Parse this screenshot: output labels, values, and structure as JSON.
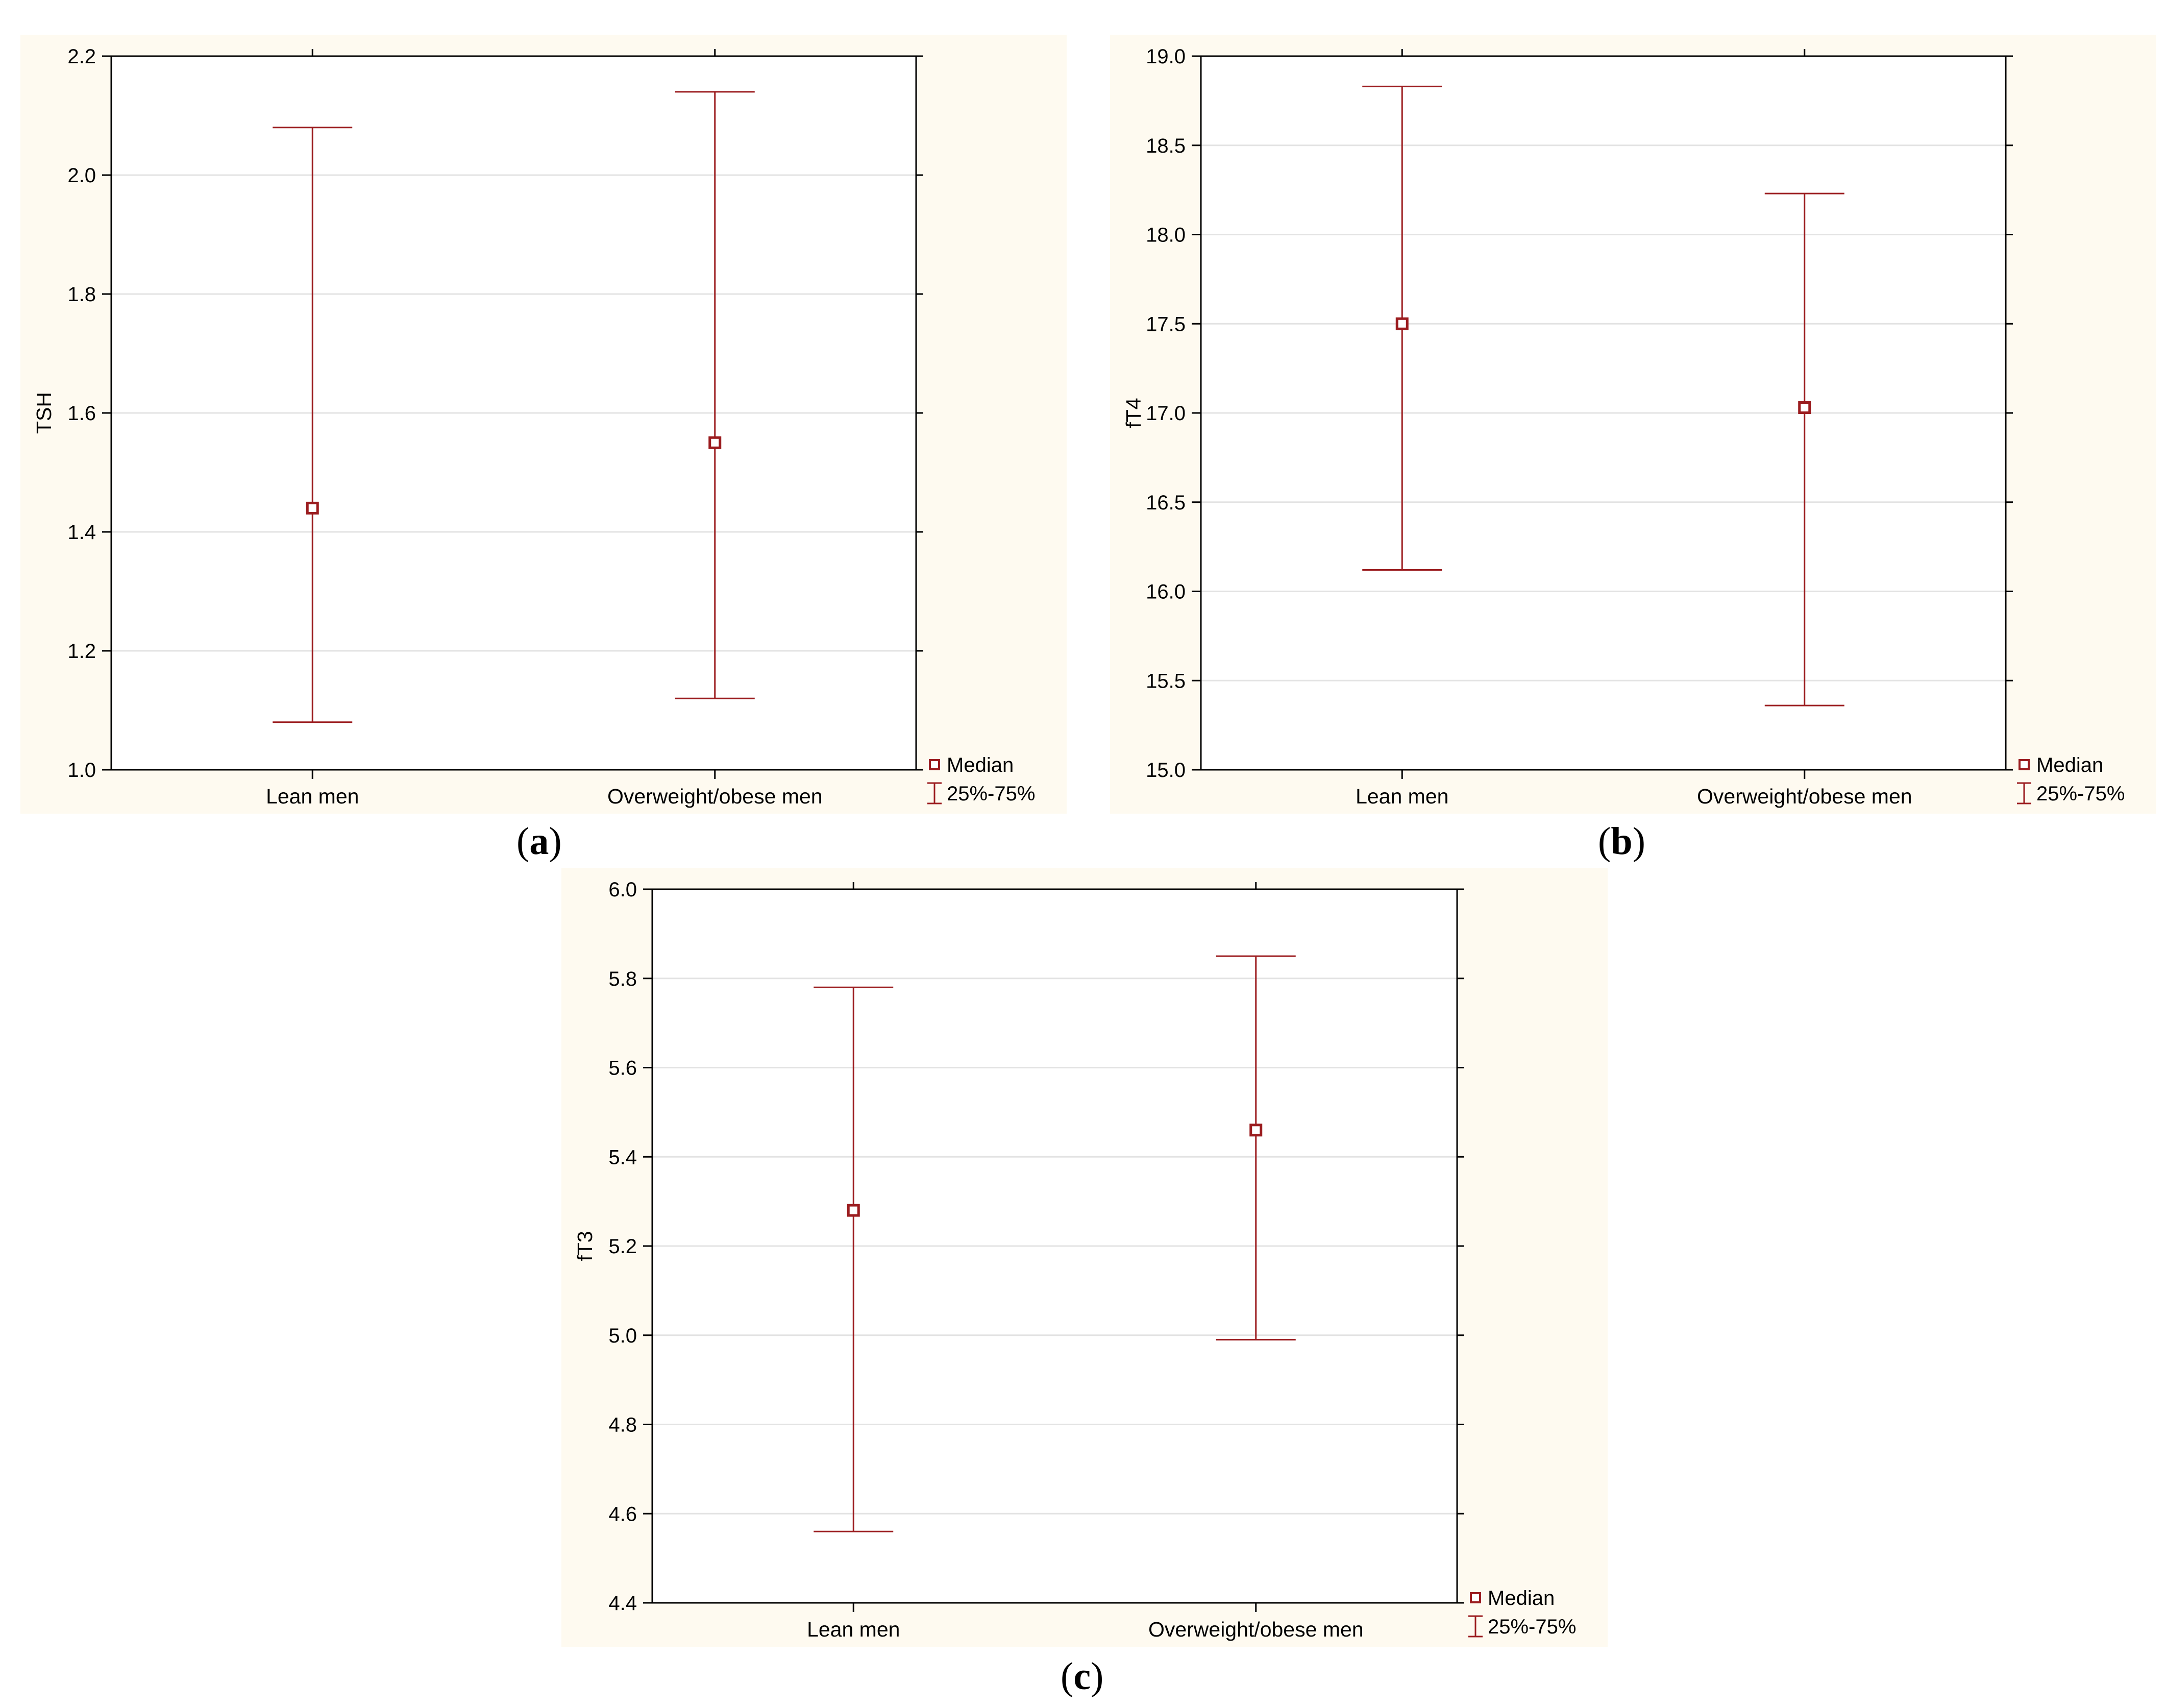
{
  "chart_data": [
    {
      "panel": "a",
      "type": "scatter",
      "categories": [
        "Lean men",
        "Overweight/obese men"
      ],
      "ylabel": "TSH",
      "xlabel": "",
      "ylim": [
        1.0,
        2.2
      ],
      "yticks": [
        "1.0",
        "1.2",
        "1.4",
        "1.6",
        "1.8",
        "2.0",
        "2.2"
      ],
      "grid": true,
      "series": [
        {
          "name": "Median",
          "values": [
            1.44,
            1.55
          ]
        },
        {
          "name": "25%-75%",
          "low": [
            1.08,
            1.12
          ],
          "high": [
            2.08,
            2.14
          ]
        }
      ],
      "legend": {
        "position": "bottom-right",
        "median_label": "Median",
        "range_label": "25%-75%"
      },
      "color": "#9b1c1f"
    },
    {
      "panel": "b",
      "type": "scatter",
      "categories": [
        "Lean men",
        "Overweight/obese men"
      ],
      "ylabel": "fT4",
      "xlabel": "",
      "ylim": [
        15.0,
        19.0
      ],
      "yticks": [
        "15.0",
        "15.5",
        "16.0",
        "16.5",
        "17.0",
        "17.5",
        "18.0",
        "18.5",
        "19.0"
      ],
      "grid": true,
      "series": [
        {
          "name": "Median",
          "values": [
            17.5,
            17.03
          ]
        },
        {
          "name": "25%-75%",
          "low": [
            16.12,
            15.36
          ],
          "high": [
            18.83,
            18.23
          ]
        }
      ],
      "legend": {
        "position": "bottom-right",
        "median_label": "Median",
        "range_label": "25%-75%"
      },
      "color": "#9b1c1f"
    },
    {
      "panel": "c",
      "type": "scatter",
      "categories": [
        "Lean men",
        "Overweight/obese men"
      ],
      "ylabel": "fT3",
      "xlabel": "",
      "ylim": [
        4.4,
        6.0
      ],
      "yticks": [
        "4.4",
        "4.6",
        "4.8",
        "5.0",
        "5.2",
        "5.4",
        "5.6",
        "5.8",
        "6.0"
      ],
      "grid": true,
      "series": [
        {
          "name": "Median",
          "values": [
            5.28,
            5.46
          ]
        },
        {
          "name": "25%-75%",
          "low": [
            4.56,
            4.99
          ],
          "high": [
            5.78,
            5.85
          ]
        }
      ],
      "legend": {
        "position": "bottom-right",
        "median_label": "Median",
        "range_label": "25%-75%"
      },
      "color": "#9b1c1f"
    }
  ],
  "captions": {
    "a": {
      "open": "(",
      "letter": "a",
      "close": ")"
    },
    "b": {
      "open": "(",
      "letter": "b",
      "close": ")"
    },
    "c": {
      "open": "(",
      "letter": "c",
      "close": ")"
    }
  }
}
